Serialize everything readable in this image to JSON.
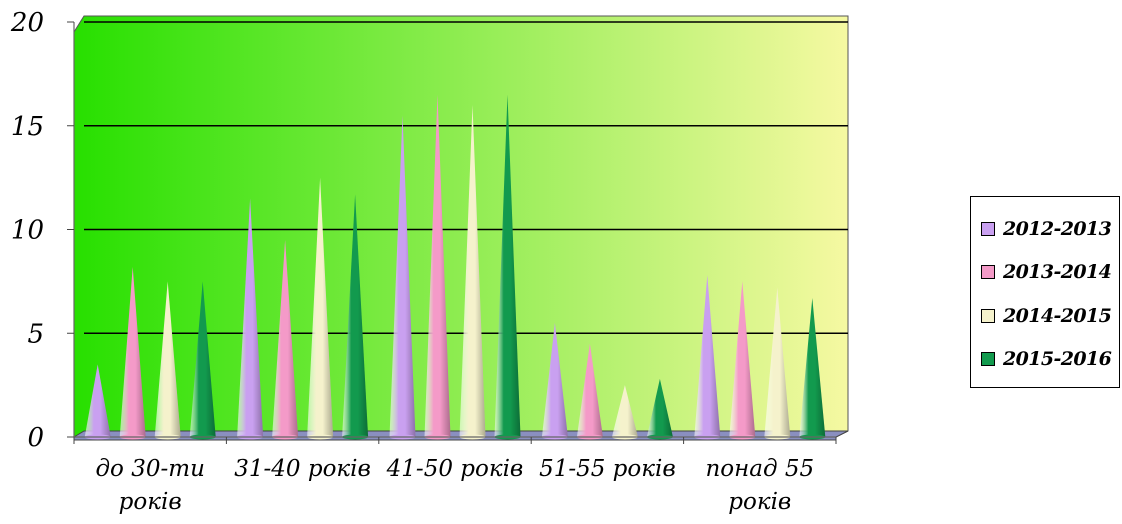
{
  "chart_data": {
    "type": "bar",
    "shape": "cone",
    "title": "",
    "xlabel": "",
    "ylabel": "",
    "ylim": [
      0,
      20
    ],
    "yticks": [
      "0",
      "5",
      "10",
      "15",
      "20"
    ],
    "grid": true,
    "legend_position": "right",
    "categories": [
      [
        "до 30-ти",
        "років"
      ],
      [
        "31-40 років"
      ],
      [
        "41-50 років"
      ],
      [
        "51-55 років"
      ],
      [
        "понад 55",
        "років"
      ]
    ],
    "series": [
      {
        "name": "2012-2013",
        "color": "#c9a0f0",
        "values": [
          3.5,
          11.5,
          15.5,
          5.5,
          7.8
        ]
      },
      {
        "name": "2013-2014",
        "color": "#f49ac8",
        "values": [
          8.2,
          9.5,
          16.5,
          4.5,
          7.5
        ]
      },
      {
        "name": "2014-2015",
        "color": "#f5f2cc",
        "values": [
          7.5,
          12.5,
          16.0,
          2.5,
          7.2
        ]
      },
      {
        "name": "2015-2016",
        "color": "#129a4e",
        "values": [
          7.5,
          11.7,
          16.5,
          2.8,
          6.7
        ]
      }
    ],
    "colors": {
      "plot_gradient_left": "#27e000",
      "plot_gradient_right": "#f6f9a2",
      "floor": "#8a8fc0",
      "gridline": "#000000"
    }
  }
}
